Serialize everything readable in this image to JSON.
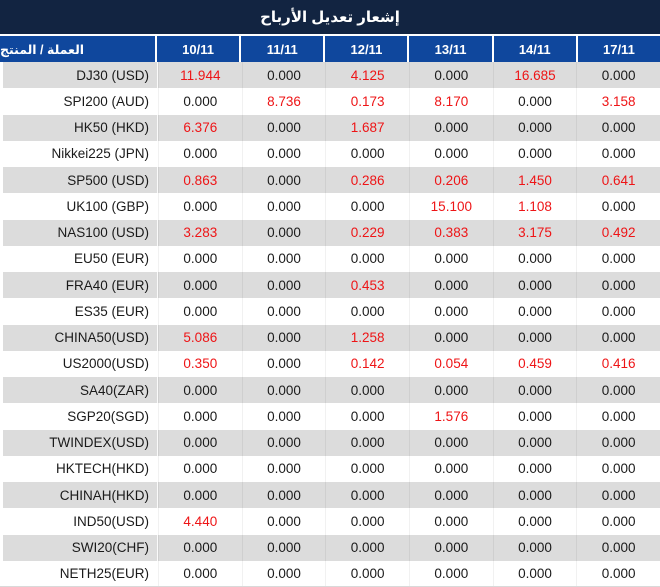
{
  "title": "إشعار تعديل الأرباح",
  "table": {
    "product_header": "العملة / المنتج",
    "date_headers": [
      "10/11",
      "11/11",
      "12/11",
      "13/11",
      "14/11",
      "17/11"
    ],
    "rows": [
      {
        "product": "DJ30 (USD)",
        "values": [
          "11.944",
          "0.000",
          "4.125",
          "0.000",
          "16.685",
          "0.000"
        ]
      },
      {
        "product": "SPI200 (AUD)",
        "values": [
          "0.000",
          "8.736",
          "0.173",
          "8.170",
          "0.000",
          "3.158"
        ]
      },
      {
        "product": "HK50 (HKD)",
        "values": [
          "6.376",
          "0.000",
          "1.687",
          "0.000",
          "0.000",
          "0.000"
        ]
      },
      {
        "product": "Nikkei225 (JPN)",
        "values": [
          "0.000",
          "0.000",
          "0.000",
          "0.000",
          "0.000",
          "0.000"
        ]
      },
      {
        "product": "SP500 (USD)",
        "values": [
          "0.863",
          "0.000",
          "0.286",
          "0.206",
          "1.450",
          "0.641"
        ]
      },
      {
        "product": "UK100 (GBP)",
        "values": [
          "0.000",
          "0.000",
          "0.000",
          "15.100",
          "1.108",
          "0.000"
        ]
      },
      {
        "product": "NAS100 (USD)",
        "values": [
          "3.283",
          "0.000",
          "0.229",
          "0.383",
          "3.175",
          "0.492"
        ]
      },
      {
        "product": "EU50 (EUR)",
        "values": [
          "0.000",
          "0.000",
          "0.000",
          "0.000",
          "0.000",
          "0.000"
        ]
      },
      {
        "product": "FRA40 (EUR)",
        "values": [
          "0.000",
          "0.000",
          "0.453",
          "0.000",
          "0.000",
          "0.000"
        ]
      },
      {
        "product": "ES35 (EUR)",
        "values": [
          "0.000",
          "0.000",
          "0.000",
          "0.000",
          "0.000",
          "0.000"
        ]
      },
      {
        "product": "CHINA50(USD)",
        "values": [
          "5.086",
          "0.000",
          "1.258",
          "0.000",
          "0.000",
          "0.000"
        ]
      },
      {
        "product": "US2000(USD)",
        "values": [
          "0.350",
          "0.000",
          "0.142",
          "0.054",
          "0.459",
          "0.416"
        ]
      },
      {
        "product": "SA40(ZAR)",
        "values": [
          "0.000",
          "0.000",
          "0.000",
          "0.000",
          "0.000",
          "0.000"
        ]
      },
      {
        "product": "SGP20(SGD)",
        "values": [
          "0.000",
          "0.000",
          "0.000",
          "1.576",
          "0.000",
          "0.000"
        ]
      },
      {
        "product": "TWINDEX(USD)",
        "values": [
          "0.000",
          "0.000",
          "0.000",
          "0.000",
          "0.000",
          "0.000"
        ]
      },
      {
        "product": "HKTECH(HKD)",
        "values": [
          "0.000",
          "0.000",
          "0.000",
          "0.000",
          "0.000",
          "0.000"
        ]
      },
      {
        "product": "CHINAH(HKD)",
        "values": [
          "0.000",
          "0.000",
          "0.000",
          "0.000",
          "0.000",
          "0.000"
        ]
      },
      {
        "product": "IND50(USD)",
        "values": [
          "4.440",
          "0.000",
          "0.000",
          "0.000",
          "0.000",
          "0.000"
        ]
      },
      {
        "product": "SWI20(CHF)",
        "values": [
          "0.000",
          "0.000",
          "0.000",
          "0.000",
          "0.000",
          "0.000"
        ]
      },
      {
        "product": "NETH25(EUR)",
        "values": [
          "0.000",
          "0.000",
          "0.000",
          "0.000",
          "0.000",
          "0.000"
        ]
      }
    ]
  },
  "colors": {
    "title_bg": "#122441",
    "header_bg": "#0f479d",
    "stripe_bg": "#dcdcdc",
    "value_red": "#ee1416",
    "text_dark": "#1a1a1a"
  }
}
